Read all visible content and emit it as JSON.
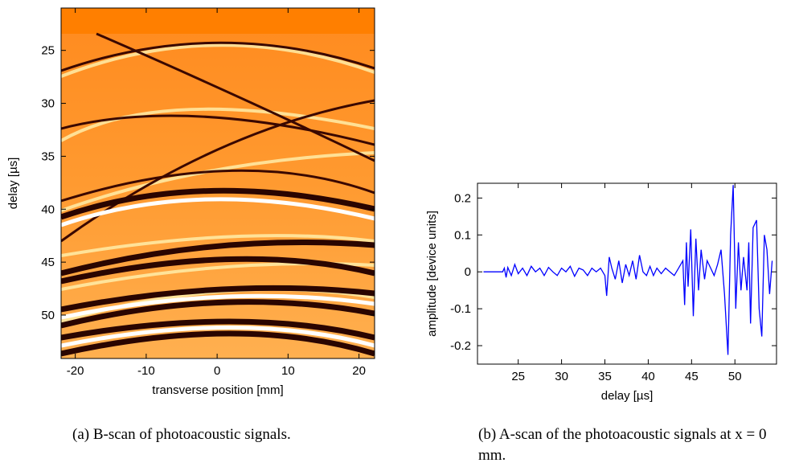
{
  "chart_data": [
    {
      "type": "image",
      "xlabel": "transverse position [mm]",
      "ylabel": "delay [µs]",
      "xlim": [
        -22,
        22.2
      ],
      "xticks": [
        -20,
        -10,
        0,
        10,
        20
      ],
      "ylim": [
        21,
        54.1
      ],
      "yticks": [
        25,
        30,
        35,
        40,
        45,
        50
      ],
      "yreverse": true
    },
    {
      "type": "line",
      "xlabel": "delay [µs]",
      "ylabel": "amplitude [device units]",
      "xlim": [
        20.3,
        54.8
      ],
      "xticks": [
        25,
        30,
        35,
        40,
        45,
        50
      ],
      "ylim": [
        -0.25,
        0.24
      ],
      "yticks": [
        -0.2,
        -0.1,
        0,
        0.1,
        0.2
      ],
      "x": [
        21.0,
        23.2,
        23.4,
        23.6,
        23.8,
        24.2,
        24.6,
        25,
        25.5,
        26,
        26.5,
        27,
        27.5,
        28,
        28.5,
        29,
        29.5,
        30,
        30.5,
        31,
        31.5,
        32,
        32.5,
        33,
        33.5,
        34,
        34.5,
        35,
        35.2,
        35.5,
        35.8,
        36.2,
        36.6,
        37,
        37.4,
        37.8,
        38.2,
        38.6,
        39,
        39.4,
        39.8,
        40.2,
        40.6,
        41,
        41.5,
        42,
        42.5,
        43,
        43.5,
        44,
        44.2,
        44.4,
        44.6,
        44.9,
        45.2,
        45.5,
        45.8,
        46.1,
        46.5,
        46.8,
        47.2,
        47.6,
        48,
        48.4,
        48.8,
        49.2,
        49.5,
        49.8,
        50.1,
        50.4,
        50.7,
        51,
        51.4,
        51.6,
        51.8,
        52.1,
        52.5,
        52.8,
        53.1,
        53.4,
        53.7,
        54,
        54.3
      ],
      "series": [
        {
          "color": "#0000ff",
          "values": [
            0,
            0,
            0.01,
            -0.015,
            0.012,
            -0.01,
            0.02,
            -0.005,
            0.01,
            -0.01,
            0.015,
            0,
            0.01,
            -0.01,
            0.012,
            0,
            -0.01,
            0.01,
            0,
            0.015,
            -0.012,
            0.01,
            0.005,
            -0.01,
            0.01,
            0,
            0.01,
            -0.01,
            -0.065,
            0.04,
            0.01,
            -0.02,
            0.03,
            -0.03,
            0.02,
            -0.01,
            0.03,
            -0.02,
            0.045,
            0,
            -0.01,
            0.015,
            -0.01,
            0.01,
            -0.005,
            0.01,
            0,
            -0.01,
            0.01,
            0.03,
            -0.09,
            0.08,
            -0.04,
            0.115,
            -0.12,
            0.09,
            -0.05,
            0.06,
            -0.02,
            0.03,
            0.01,
            -0.01,
            0.02,
            0.06,
            -0.06,
            -0.225,
            0.1,
            0.235,
            -0.1,
            0.08,
            -0.05,
            0.04,
            -0.05,
            0.08,
            -0.14,
            0.12,
            0.14,
            -0.1,
            -0.175,
            0.1,
            0.06,
            -0.06,
            0.03
          ]
        }
      ]
    }
  ],
  "captions": [
    "(a) B-scan of photoacoustic signals.",
    "(b) A-scan of the photoacoustic signals at x = 0 mm."
  ]
}
